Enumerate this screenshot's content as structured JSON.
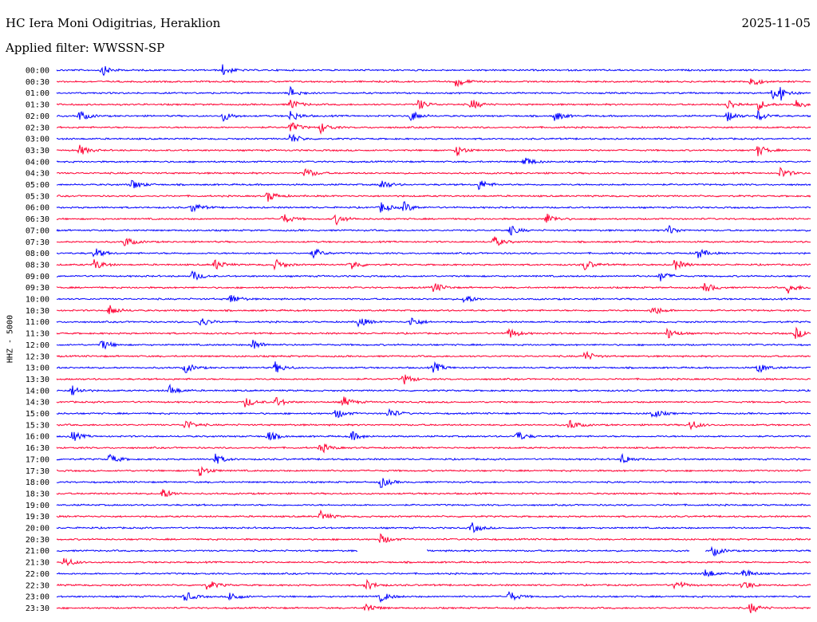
{
  "header": {
    "station": "HC Iera Moni Odigitrias, Heraklion",
    "date": "2025-11-05",
    "filter": "Applied filter: WWSSN-SP"
  },
  "chart_data": {
    "type": "line",
    "title": "HC Iera Moni Odigitrias, Heraklion",
    "ylabel": "HHZ - 5000",
    "trace_colors": [
      "#0000ff",
      "#ff0033"
    ],
    "rows": [
      {
        "label": "00:00",
        "events": [
          0.06,
          0.22
        ]
      },
      {
        "label": "00:30",
        "events": [
          0.53,
          0.92
        ]
      },
      {
        "label": "01:00",
        "events": [
          0.31,
          0.95,
          0.96
        ]
      },
      {
        "label": "01:30",
        "events": [
          0.31,
          0.48,
          0.55,
          0.89,
          0.93,
          0.98
        ]
      },
      {
        "label": "02:00",
        "events": [
          0.03,
          0.22,
          0.31,
          0.47,
          0.66,
          0.89,
          0.93
        ]
      },
      {
        "label": "02:30",
        "events": [
          0.31,
          0.35
        ]
      },
      {
        "label": "03:00",
        "events": [
          0.31
        ]
      },
      {
        "label": "03:30",
        "events": [
          0.03,
          0.53,
          0.93
        ]
      },
      {
        "label": "04:00",
        "events": [
          0.62
        ]
      },
      {
        "label": "04:30",
        "events": [
          0.33,
          0.96
        ]
      },
      {
        "label": "05:00",
        "events": [
          0.1,
          0.43,
          0.56
        ]
      },
      {
        "label": "05:30",
        "events": [
          0.28
        ]
      },
      {
        "label": "06:00",
        "events": [
          0.18,
          0.43,
          0.46
        ]
      },
      {
        "label": "06:30",
        "events": [
          0.3,
          0.37,
          0.65
        ]
      },
      {
        "label": "07:00",
        "events": [
          0.6,
          0.81
        ]
      },
      {
        "label": "07:30",
        "events": [
          0.09,
          0.58
        ]
      },
      {
        "label": "08:00",
        "events": [
          0.05,
          0.34,
          0.85
        ]
      },
      {
        "label": "08:30",
        "events": [
          0.05,
          0.21,
          0.29,
          0.39,
          0.7,
          0.82
        ]
      },
      {
        "label": "09:00",
        "events": [
          0.18,
          0.8
        ]
      },
      {
        "label": "09:30",
        "events": [
          0.5,
          0.86,
          0.97
        ]
      },
      {
        "label": "10:00",
        "events": [
          0.23,
          0.54
        ]
      },
      {
        "label": "10:30",
        "events": [
          0.07,
          0.79
        ]
      },
      {
        "label": "11:00",
        "events": [
          0.19,
          0.4,
          0.47
        ]
      },
      {
        "label": "11:30",
        "events": [
          0.6,
          0.81,
          0.98
        ]
      },
      {
        "label": "12:00",
        "events": [
          0.06,
          0.26
        ]
      },
      {
        "label": "12:30",
        "events": [
          0.7
        ]
      },
      {
        "label": "13:00",
        "events": [
          0.17,
          0.29,
          0.5,
          0.93
        ]
      },
      {
        "label": "13:30",
        "events": [
          0.46
        ]
      },
      {
        "label": "14:00",
        "events": [
          0.02,
          0.15
        ]
      },
      {
        "label": "14:30",
        "events": [
          0.25,
          0.29,
          0.38
        ]
      },
      {
        "label": "15:00",
        "events": [
          0.37,
          0.44,
          0.79
        ]
      },
      {
        "label": "15:30",
        "events": [
          0.17,
          0.68,
          0.84
        ]
      },
      {
        "label": "16:00",
        "events": [
          0.02,
          0.28,
          0.39,
          0.61
        ]
      },
      {
        "label": "16:30",
        "events": [
          0.35
        ]
      },
      {
        "label": "17:00",
        "events": [
          0.07,
          0.21,
          0.75
        ]
      },
      {
        "label": "17:30",
        "events": [
          0.19
        ]
      },
      {
        "label": "18:00",
        "events": [
          0.43
        ]
      },
      {
        "label": "18:30",
        "events": [
          0.14
        ]
      },
      {
        "label": "19:00",
        "events": []
      },
      {
        "label": "19:30",
        "events": [
          0.35
        ]
      },
      {
        "label": "20:00",
        "events": [
          0.55
        ]
      },
      {
        "label": "20:30",
        "events": [
          0.43
        ]
      },
      {
        "label": "21:00",
        "events": [
          0.87
        ],
        "gaps": [
          [
            0.4,
            0.49
          ],
          [
            0.84,
            0.86
          ]
        ]
      },
      {
        "label": "21:30",
        "events": [
          0.01
        ]
      },
      {
        "label": "22:00",
        "events": [
          0.86,
          0.91
        ]
      },
      {
        "label": "22:30",
        "events": [
          0.2,
          0.41,
          0.82,
          0.91
        ]
      },
      {
        "label": "23:00",
        "events": [
          0.17,
          0.23,
          0.43,
          0.6
        ]
      },
      {
        "label": "23:30",
        "events": [
          0.41,
          0.92
        ]
      }
    ]
  }
}
